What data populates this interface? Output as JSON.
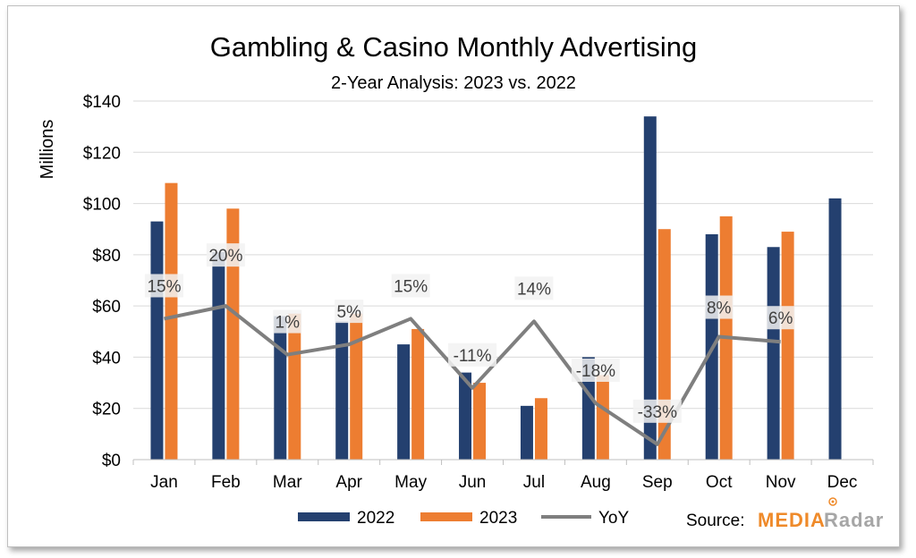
{
  "colors": {
    "series_2022": "#24406f",
    "series_2023": "#ed7d31",
    "yoy": "#7f7f7f",
    "label_box": "#f2f2f2",
    "grid": "#d9d9d9",
    "brand_media": "#ef8a2a",
    "brand_radar": "#a6a6a6"
  },
  "chart_data": {
    "type": "bar",
    "title": "Gambling & Casino Monthly Advertising",
    "subtitle": "2-Year Analysis: 2023 vs. 2022",
    "ylabel": "Millions",
    "xlabel": "",
    "ylim": [
      0,
      140
    ],
    "yticks": [
      0,
      20,
      40,
      60,
      80,
      100,
      120,
      140
    ],
    "ytick_labels": [
      "$0",
      "$20",
      "$40",
      "$60",
      "$80",
      "$100",
      "$120",
      "$140"
    ],
    "categories": [
      "Jan",
      "Feb",
      "Mar",
      "Apr",
      "May",
      "Jun",
      "Jul",
      "Aug",
      "Sep",
      "Oct",
      "Nov",
      "Dec"
    ],
    "series": [
      {
        "name": "2022",
        "type": "bar",
        "values": [
          93,
          81,
          56,
          54,
          45,
          34,
          21,
          40,
          134,
          88,
          83,
          102
        ]
      },
      {
        "name": "2023",
        "type": "bar",
        "values": [
          108,
          98,
          57,
          57,
          51,
          30,
          24,
          33,
          90,
          95,
          89,
          null
        ]
      },
      {
        "name": "YoY",
        "type": "line",
        "values": [
          55,
          60,
          41,
          45,
          55,
          28,
          54,
          22,
          6,
          48,
          46,
          null
        ],
        "labels": [
          "15%",
          "20%",
          "1%",
          "5%",
          "15%",
          "-11%",
          "14%",
          "-18%",
          "-33%",
          "8%",
          "6%",
          null
        ]
      }
    ],
    "legend": {
      "position": "bottom",
      "entries": [
        "2022",
        "2023",
        "YoY"
      ]
    },
    "grid": true
  },
  "source": {
    "label": "Source:",
    "brand_part1": "MEDIA",
    "brand_part2": "Radar"
  }
}
